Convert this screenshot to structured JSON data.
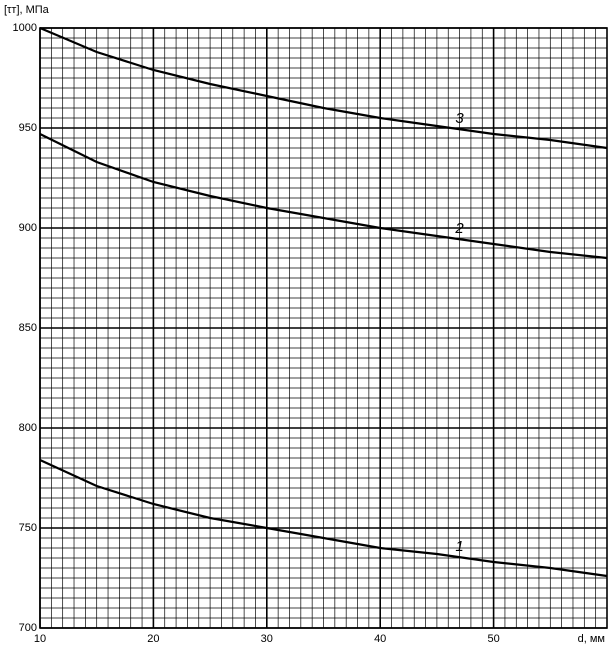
{
  "chart_data": {
    "type": "line",
    "ylabel": "[τт], МПа",
    "xlabel": "d, мм",
    "x": [
      10,
      15,
      20,
      25,
      30,
      35,
      40,
      45,
      50,
      55,
      60
    ],
    "series": [
      {
        "name": "1",
        "color": "#000000",
        "values": [
          784,
          771,
          762,
          755,
          750,
          745,
          740,
          737,
          733,
          730,
          726
        ]
      },
      {
        "name": "2",
        "color": "#000000",
        "values": [
          947,
          933,
          923,
          916,
          910,
          905,
          900,
          896,
          892,
          888,
          885
        ]
      },
      {
        "name": "3",
        "color": "#000000",
        "values": [
          1000,
          988,
          979,
          972,
          966,
          960,
          955,
          951,
          947,
          944,
          940
        ]
      }
    ],
    "xlim": [
      10,
      60
    ],
    "xticks": [
      10,
      20,
      30,
      40,
      50
    ],
    "ylim": [
      700,
      1000
    ],
    "yticks": [
      700,
      750,
      800,
      850,
      900,
      950,
      1000
    ],
    "grid": true
  }
}
